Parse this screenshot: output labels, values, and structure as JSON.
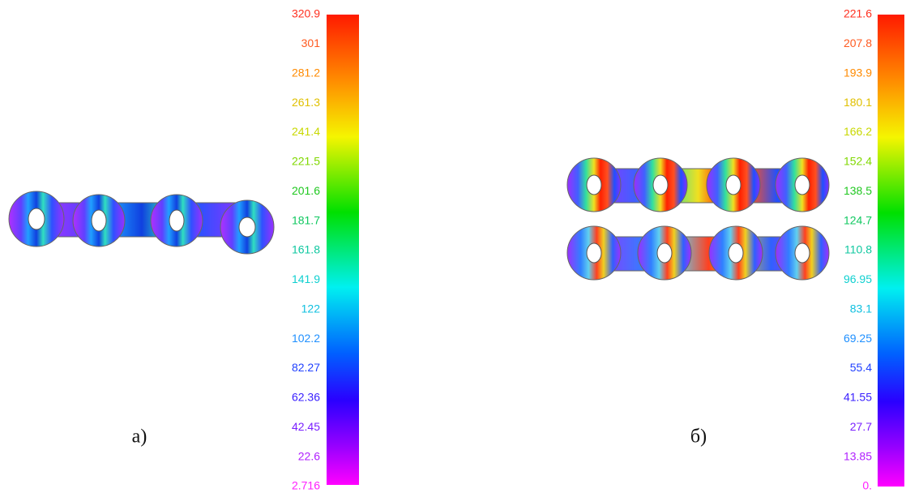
{
  "panels": [
    {
      "caption": "а)",
      "scale_labels": [
        "320.9",
        "301",
        "281.2",
        "261.3",
        "241.4",
        "221.5",
        "201.6",
        "181.7",
        "161.8",
        "141.9",
        "122",
        "102.2",
        "82.27",
        "62.36",
        "42.45",
        "22.6",
        "2.716"
      ]
    },
    {
      "caption": "б)",
      "scale_labels": [
        "221.6",
        "207.8",
        "193.9",
        "180.1",
        "166.2",
        "152.4",
        "138.5",
        "124.7",
        "110.8",
        "96.95",
        "83.1",
        "69.25",
        "55.4",
        "41.55",
        "27.7",
        "13.85",
        "0."
      ]
    }
  ]
}
